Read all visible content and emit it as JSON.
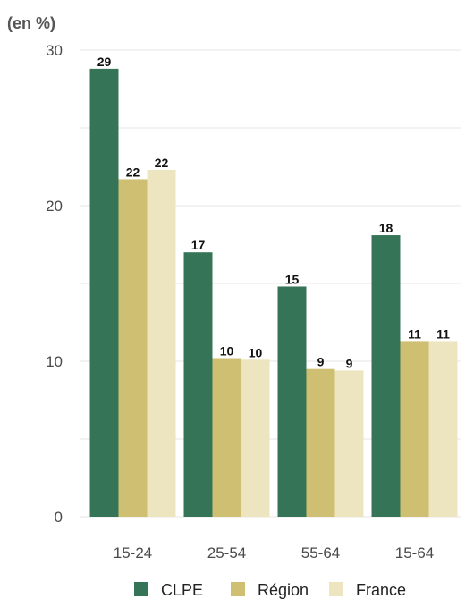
{
  "chart_data": {
    "type": "bar",
    "y_unit_label": "(en %)",
    "categories": [
      "15-24",
      "25-54",
      "55-64",
      "15-64"
    ],
    "series": [
      {
        "name": "CLPE",
        "color": "#367457",
        "values": [
          28.8,
          17.0,
          14.8,
          18.1
        ],
        "labels": [
          "29",
          "17",
          "15",
          "18"
        ]
      },
      {
        "name": "Région",
        "color": "#cfbf72",
        "values": [
          21.7,
          10.2,
          9.5,
          11.3
        ],
        "labels": [
          "22",
          "10",
          "9",
          "11"
        ]
      },
      {
        "name": "France",
        "color": "#ede5bf",
        "values": [
          22.3,
          10.1,
          9.4,
          11.3
        ],
        "labels": [
          "22",
          "10",
          "9",
          "11"
        ]
      }
    ],
    "ylim": [
      0,
      30
    ],
    "yticks": [
      0,
      10,
      20,
      30
    ],
    "grid": true,
    "legend_position": "bottom"
  }
}
